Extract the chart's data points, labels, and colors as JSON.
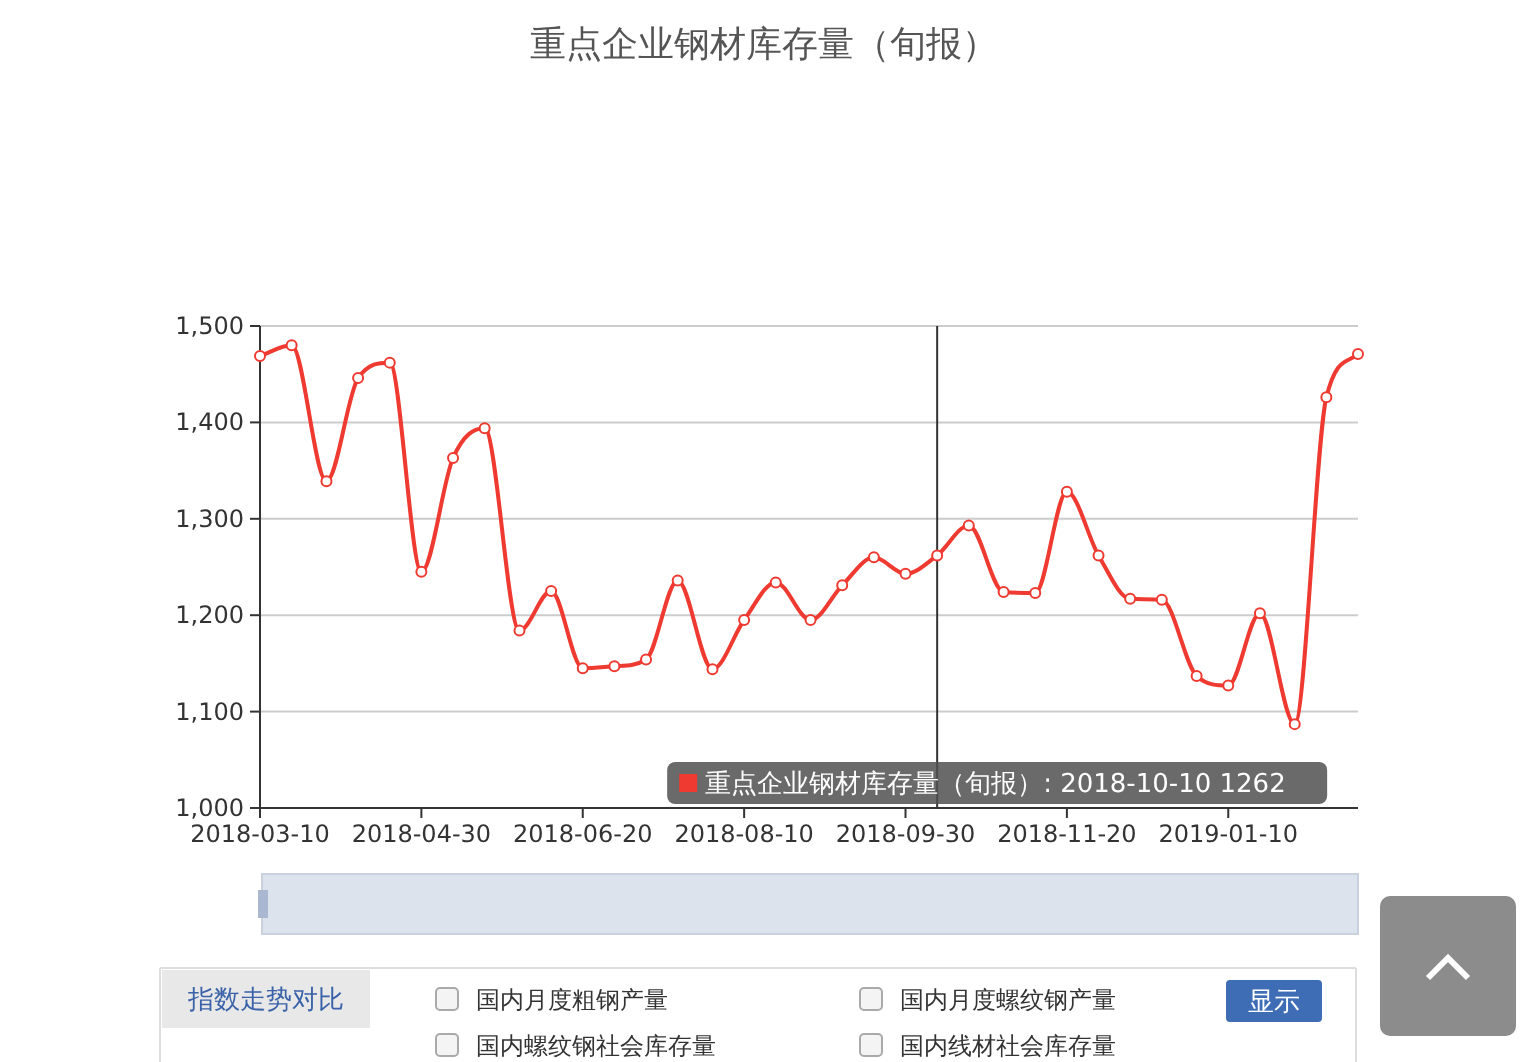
{
  "chart_data": {
    "type": "line",
    "title": "重点企业钢材库存量（旬报）",
    "x": [
      "2018-03-10",
      "2018-03-20",
      "2018-03-31",
      "2018-04-10",
      "2018-04-20",
      "2018-04-30",
      "2018-05-10",
      "2018-05-20",
      "2018-05-31",
      "2018-06-10",
      "2018-06-20",
      "2018-06-30",
      "2018-07-10",
      "2018-07-20",
      "2018-07-31",
      "2018-08-10",
      "2018-08-20",
      "2018-08-31",
      "2018-09-10",
      "2018-09-20",
      "2018-09-30",
      "2018-10-10",
      "2018-10-20",
      "2018-10-31",
      "2018-11-10",
      "2018-11-20",
      "2018-11-30",
      "2018-12-10",
      "2018-12-20",
      "2018-12-31",
      "2019-01-10",
      "2019-01-20",
      "2019-01-31",
      "2019-02-10",
      "2019-02-20"
    ],
    "series": [
      {
        "color": "#ee3a30",
        "values": [
          1469,
          1480,
          1339,
          1446,
          1462,
          1245,
          1363,
          1394,
          1184,
          1225,
          1145,
          1147,
          1154,
          1236,
          1144,
          1195,
          1234,
          1195,
          1231,
          1260,
          1243,
          1262,
          1293,
          1224,
          1223,
          1328,
          1262,
          1217,
          1216,
          1137,
          1127,
          1202,
          1087,
          1426,
          1471
        ]
      }
    ],
    "xlim": [
      "2018-03-10",
      "2019-02-20"
    ],
    "xticks": [
      "2018-03-10",
      "2018-04-30",
      "2018-06-20",
      "2018-08-10",
      "2018-09-30",
      "2018-11-20",
      "2019-01-10"
    ],
    "ylim": [
      1000,
      1500
    ],
    "yticks": [
      {
        "value": 1000,
        "label": "1,000"
      },
      {
        "value": 1100,
        "label": "1,100"
      },
      {
        "value": 1200,
        "label": "1,200"
      },
      {
        "value": 1300,
        "label": "1,300"
      },
      {
        "value": 1400,
        "label": "1,400"
      },
      {
        "value": 1500,
        "label": "1,500"
      }
    ],
    "grid": "y",
    "marker": "circle",
    "line_style": "solid",
    "ref_lines": [
      {
        "axis": "x",
        "value": "2018-10-10",
        "color": "#333333"
      }
    ],
    "annotations": [
      "重点企业钢材库存量（旬报）: 2018-10-10 1262",
      "指数走势对比",
      "国内月度粗钢产量",
      "国内月度螺纹钢产量",
      "显示",
      "国内螺纹钢社会库存量",
      "国内线材社会库存量"
    ]
  }
}
